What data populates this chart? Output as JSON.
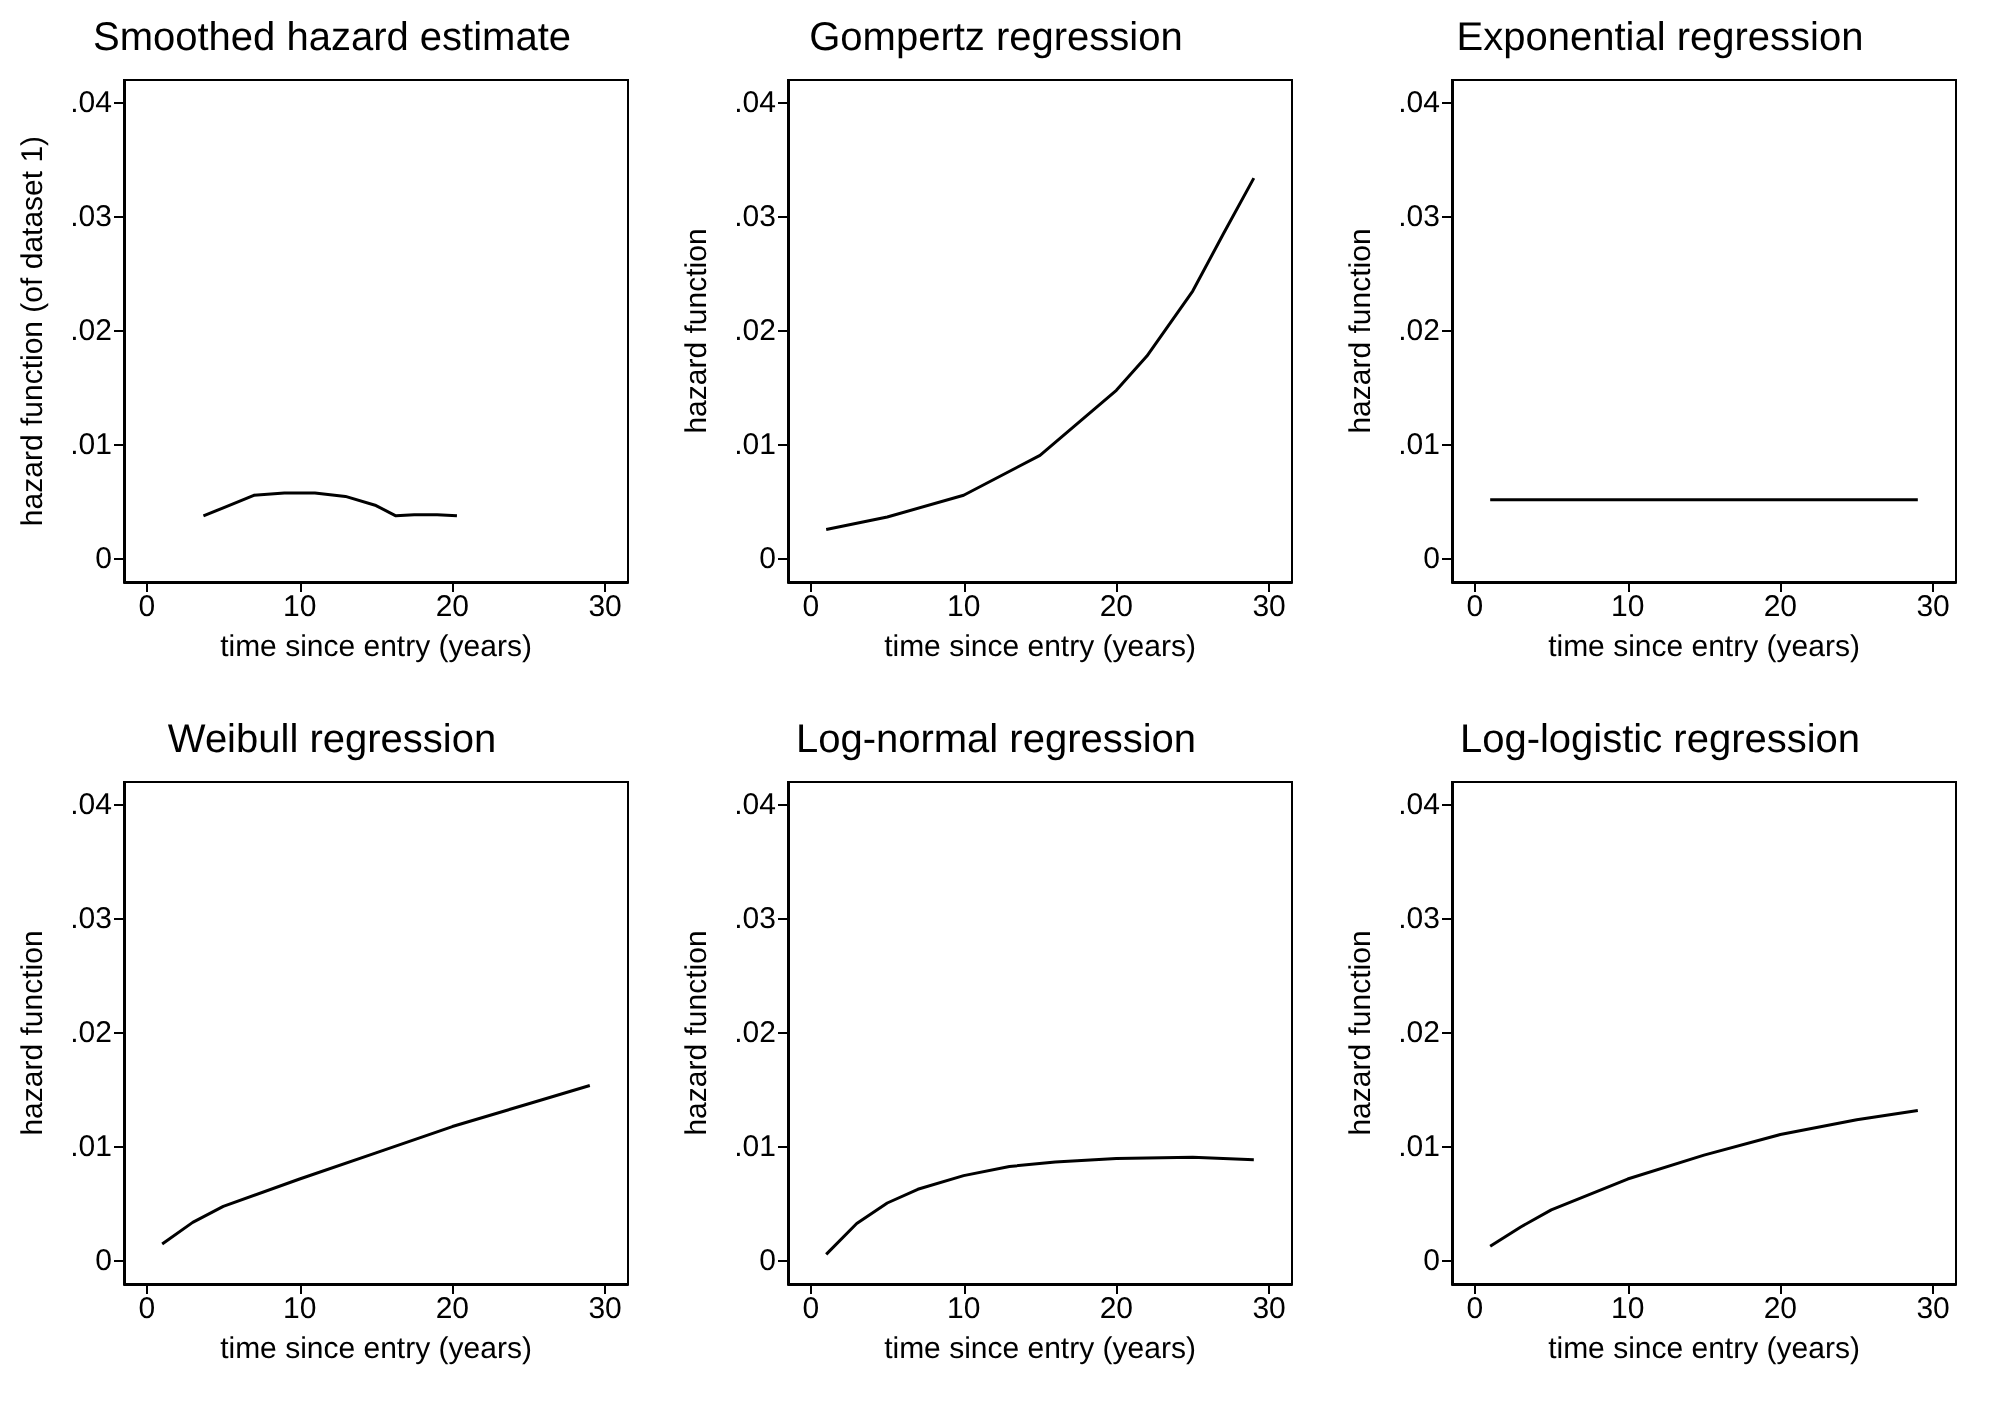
{
  "chart_data": [
    {
      "type": "line",
      "title": "Smoothed hazard estimate",
      "xlabel": "time since entry (years)",
      "ylabel": "hazard function (of dataset 1)",
      "xlim": [
        -1.5,
        31.5
      ],
      "xticks": [
        0,
        10,
        20,
        30
      ],
      "ylim": [
        -0.002,
        0.042
      ],
      "yticks": [
        {
          "value": 0,
          "label": "0"
        },
        {
          "value": 0.01,
          "label": ".01"
        },
        {
          "value": 0.02,
          "label": ".02"
        },
        {
          "value": 0.03,
          "label": ".03"
        },
        {
          "value": 0.04,
          "label": ".04"
        }
      ],
      "grid": false,
      "marker": "none",
      "series": [
        {
          "color": "#000000",
          "x": [
            3.7,
            5,
            7,
            9,
            11,
            13,
            15,
            16.3,
            17.5,
            19,
            20.3
          ],
          "values": [
            0.0038,
            0.0045,
            0.0056,
            0.0058,
            0.0058,
            0.0055,
            0.0047,
            0.0038,
            0.0039,
            0.0039,
            0.0038
          ]
        }
      ]
    },
    {
      "type": "line",
      "title": "Gompertz regression",
      "xlabel": "time since entry (years)",
      "ylabel": "hazard function",
      "xlim": [
        -1.5,
        31.5
      ],
      "xticks": [
        0,
        10,
        20,
        30
      ],
      "ylim": [
        -0.002,
        0.042
      ],
      "yticks": [
        {
          "value": 0,
          "label": "0"
        },
        {
          "value": 0.01,
          "label": ".01"
        },
        {
          "value": 0.02,
          "label": ".02"
        },
        {
          "value": 0.03,
          "label": ".03"
        },
        {
          "value": 0.04,
          "label": ".04"
        }
      ],
      "grid": false,
      "marker": "none",
      "series": [
        {
          "color": "#000000",
          "x": [
            1,
            5,
            10,
            15,
            20,
            22,
            25,
            27,
            29
          ],
          "values": [
            0.0026,
            0.0037,
            0.0056,
            0.0091,
            0.0148,
            0.0178,
            0.0235,
            0.0285,
            0.0334
          ]
        }
      ]
    },
    {
      "type": "line",
      "title": "Exponential regression",
      "xlabel": "time since entry (years)",
      "ylabel": "hazard function",
      "xlim": [
        -1.5,
        31.5
      ],
      "xticks": [
        0,
        10,
        20,
        30
      ],
      "ylim": [
        -0.002,
        0.042
      ],
      "yticks": [
        {
          "value": 0,
          "label": "0"
        },
        {
          "value": 0.01,
          "label": ".01"
        },
        {
          "value": 0.02,
          "label": ".02"
        },
        {
          "value": 0.03,
          "label": ".03"
        },
        {
          "value": 0.04,
          "label": ".04"
        }
      ],
      "grid": false,
      "marker": "none",
      "series": [
        {
          "color": "#000000",
          "x": [
            1,
            29
          ],
          "values": [
            0.0052,
            0.0052
          ]
        }
      ]
    },
    {
      "type": "line",
      "title": "Weibull regression",
      "xlabel": "time since entry (years)",
      "ylabel": "hazard function",
      "xlim": [
        -1.5,
        31.5
      ],
      "xticks": [
        0,
        10,
        20,
        30
      ],
      "ylim": [
        -0.002,
        0.042
      ],
      "yticks": [
        {
          "value": 0,
          "label": "0"
        },
        {
          "value": 0.01,
          "label": ".01"
        },
        {
          "value": 0.02,
          "label": ".02"
        },
        {
          "value": 0.03,
          "label": ".03"
        },
        {
          "value": 0.04,
          "label": ".04"
        }
      ],
      "grid": false,
      "marker": "none",
      "series": [
        {
          "color": "#000000",
          "x": [
            1,
            3,
            5,
            10,
            15,
            20,
            25,
            29
          ],
          "values": [
            0.0015,
            0.0034,
            0.0048,
            0.0072,
            0.0095,
            0.0118,
            0.0138,
            0.0154
          ]
        }
      ]
    },
    {
      "type": "line",
      "title": "Log-normal regression",
      "xlabel": "time since entry (years)",
      "ylabel": "hazard function",
      "xlim": [
        -1.5,
        31.5
      ],
      "xticks": [
        0,
        10,
        20,
        30
      ],
      "ylim": [
        -0.002,
        0.042
      ],
      "yticks": [
        {
          "value": 0,
          "label": "0"
        },
        {
          "value": 0.01,
          "label": ".01"
        },
        {
          "value": 0.02,
          "label": ".02"
        },
        {
          "value": 0.03,
          "label": ".03"
        },
        {
          "value": 0.04,
          "label": ".04"
        }
      ],
      "grid": false,
      "marker": "none",
      "series": [
        {
          "color": "#000000",
          "x": [
            1,
            3,
            5,
            7,
            10,
            13,
            16,
            20,
            25,
            29
          ],
          "values": [
            0.0006,
            0.0033,
            0.0051,
            0.0063,
            0.0075,
            0.0083,
            0.0087,
            0.009,
            0.0091,
            0.0089
          ]
        }
      ]
    },
    {
      "type": "line",
      "title": "Log-logistic regression",
      "xlabel": "time since entry (years)",
      "ylabel": "hazard function",
      "xlim": [
        -1.5,
        31.5
      ],
      "xticks": [
        0,
        10,
        20,
        30
      ],
      "ylim": [
        -0.002,
        0.042
      ],
      "yticks": [
        {
          "value": 0,
          "label": "0"
        },
        {
          "value": 0.01,
          "label": ".01"
        },
        {
          "value": 0.02,
          "label": ".02"
        },
        {
          "value": 0.03,
          "label": ".03"
        },
        {
          "value": 0.04,
          "label": ".04"
        }
      ],
      "grid": false,
      "marker": "none",
      "series": [
        {
          "color": "#000000",
          "x": [
            1,
            3,
            5,
            10,
            15,
            20,
            25,
            29
          ],
          "values": [
            0.0013,
            0.003,
            0.0045,
            0.0072,
            0.0093,
            0.0111,
            0.0124,
            0.0132
          ]
        }
      ]
    }
  ]
}
